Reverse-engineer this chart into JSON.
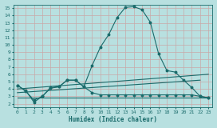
{
  "title": "",
  "xlabel": "Humidex (Indice chaleur)",
  "ylabel": "",
  "bg_color": "#b8e0e0",
  "grid_color": "#c8a8a8",
  "line_color": "#1a6b6b",
  "xlim": [
    -0.5,
    23.5
  ],
  "ylim": [
    1.5,
    15.5
  ],
  "xticks": [
    0,
    1,
    2,
    3,
    4,
    5,
    6,
    7,
    8,
    9,
    10,
    11,
    12,
    13,
    14,
    15,
    16,
    17,
    18,
    19,
    20,
    21,
    22,
    23
  ],
  "yticks": [
    2,
    3,
    4,
    5,
    6,
    7,
    8,
    9,
    10,
    11,
    12,
    13,
    14,
    15
  ],
  "line1_x": [
    0,
    1,
    2,
    3,
    4,
    5,
    6,
    7,
    8,
    9,
    10,
    11,
    12,
    13,
    14,
    15,
    16,
    17,
    18,
    19,
    20,
    21,
    22,
    23
  ],
  "line1_y": [
    4.5,
    3.8,
    2.2,
    3.0,
    4.2,
    4.3,
    5.2,
    5.2,
    4.3,
    7.2,
    9.7,
    11.4,
    13.7,
    15.1,
    15.2,
    14.8,
    13.1,
    8.8,
    6.5,
    6.3,
    5.2,
    4.2,
    3.0,
    2.8
  ],
  "line2_x": [
    0,
    1,
    2,
    3,
    4,
    5,
    6,
    7,
    8,
    9,
    10,
    11,
    12,
    13,
    14,
    15,
    16,
    17,
    18,
    19,
    20,
    21,
    22,
    23
  ],
  "line2_y": [
    4.5,
    3.7,
    2.5,
    3.0,
    4.1,
    4.3,
    5.2,
    5.2,
    4.3,
    3.5,
    3.2,
    3.2,
    3.2,
    3.2,
    3.2,
    3.2,
    3.2,
    3.2,
    3.2,
    3.2,
    3.2,
    3.2,
    3.0,
    2.8
  ],
  "line3_x": [
    0,
    23
  ],
  "line3_y": [
    4.0,
    6.0
  ],
  "line4_x": [
    0,
    22
  ],
  "line4_y": [
    3.5,
    5.2
  ],
  "line5_x": [
    0,
    23
  ],
  "line5_y": [
    2.8,
    2.8
  ]
}
